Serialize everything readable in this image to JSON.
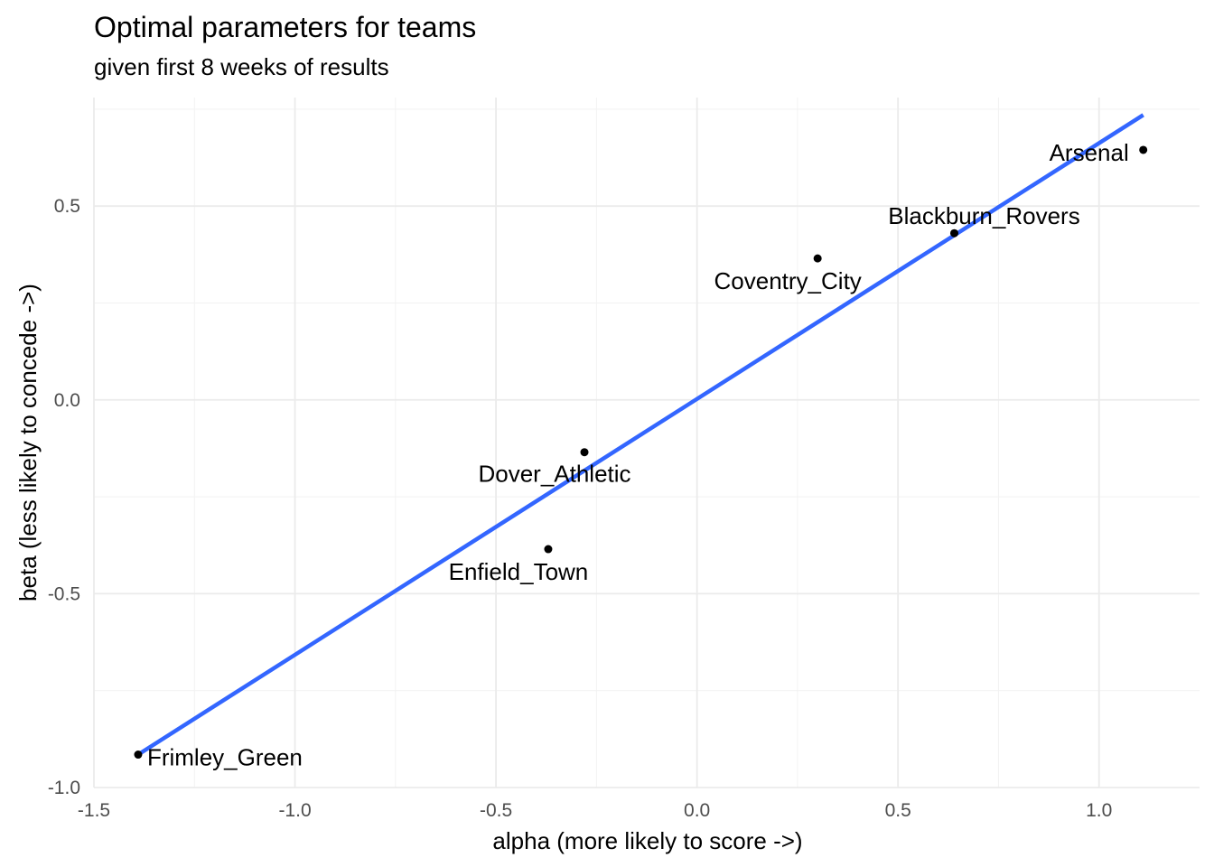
{
  "chart_data": {
    "type": "scatter",
    "title": "Optimal parameters for teams",
    "subtitle": "given first 8 weeks of results",
    "xlabel": "alpha (more likely to score ->)",
    "ylabel": "beta (less likely to concede ->)",
    "xlim": [
      -1.5,
      1.25
    ],
    "ylim": [
      -1.0,
      0.78
    ],
    "xticks": [
      -1.5,
      -1.0,
      -0.5,
      0.0,
      0.5,
      1.0
    ],
    "xtick_labels": [
      "-1.5",
      "-1.0",
      "-0.5",
      "0.0",
      "0.5",
      "1.0"
    ],
    "yticks": [
      -1.0,
      -0.5,
      0.0,
      0.5
    ],
    "ytick_labels": [
      "-1.0",
      "-0.5",
      "0.0",
      "0.5"
    ],
    "grid": true,
    "points": [
      {
        "label": "Arsenal",
        "x": 1.11,
        "y": 0.645
      },
      {
        "label": "Blackburn_Rovers",
        "x": 0.64,
        "y": 0.43
      },
      {
        "label": "Coventry_City",
        "x": 0.3,
        "y": 0.365
      },
      {
        "label": "Dover_Athletic",
        "x": -0.28,
        "y": -0.135
      },
      {
        "label": "Enfield_Town",
        "x": -0.37,
        "y": -0.385
      },
      {
        "label": "Frimley_Green",
        "x": -1.39,
        "y": -0.915
      }
    ],
    "trend_line": {
      "color": "#3366ff",
      "x": [
        -1.39,
        1.11
      ],
      "y": [
        -0.915,
        0.735
      ]
    },
    "point_color": "#000000"
  }
}
